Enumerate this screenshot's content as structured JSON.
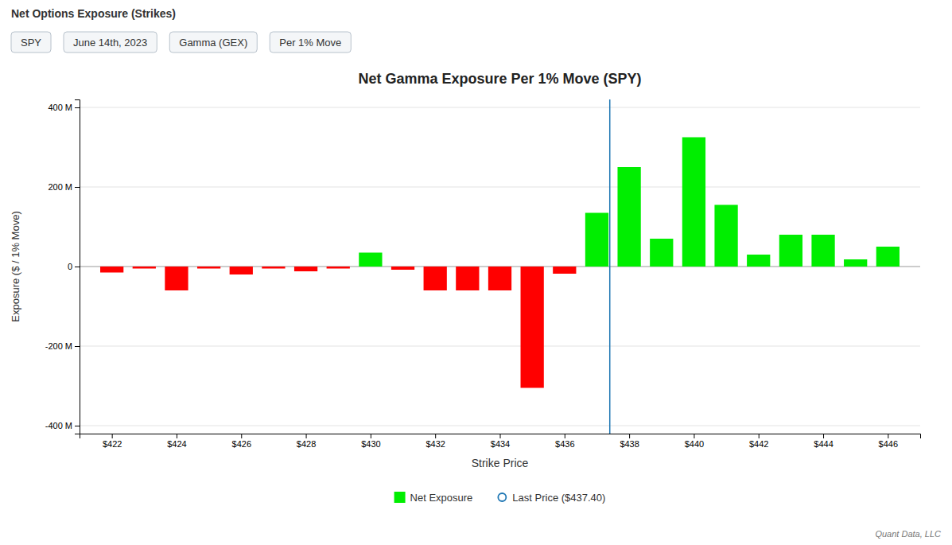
{
  "chart_data": {
    "type": "bar",
    "title": "Net Gamma Exposure Per 1% Move (SPY)",
    "x_label": "Strike Price",
    "y_label": "Exposure ($ / 1% Move)",
    "x": [
      422,
      423,
      424,
      425,
      426,
      427,
      428,
      429,
      430,
      431,
      432,
      433,
      434,
      435,
      436,
      437,
      438,
      439,
      440,
      441,
      442,
      443,
      444,
      445,
      446
    ],
    "series": [
      {
        "name": "Net Exposure",
        "color": "#00ee00",
        "values": [
          -15,
          -5,
          -60,
          -5,
          -20,
          -5,
          -12,
          -5,
          35,
          -8,
          -60,
          -60,
          -60,
          -305,
          -18,
          135,
          250,
          70,
          325,
          155,
          30,
          80,
          80,
          18,
          50
        ],
        "colors": [
          "#ff0000",
          "#ff0000",
          "#ff0000",
          "#ff0000",
          "#ff0000",
          "#ff0000",
          "#ff0000",
          "#ff0000",
          "#00ee00",
          "#ff0000",
          "#ff0000",
          "#ff0000",
          "#ff0000",
          "#ff0000",
          "#ff0000",
          "#00ee00",
          "#00ee00",
          "#00ee00",
          "#00ee00",
          "#00ee00",
          "#00ee00",
          "#00ee00",
          "#00ee00",
          "#00ee00",
          "#00ee00"
        ]
      },
      {
        "name": "Last Price ($437.40)",
        "type": "vline",
        "x": 437.4,
        "marker": "circle"
      }
    ],
    "xlim": [
      421.0,
      447.0
    ],
    "xticks": [
      {
        "value": 422,
        "label": "$422"
      },
      {
        "value": 424,
        "label": "$424"
      },
      {
        "value": 426,
        "label": "$426"
      },
      {
        "value": 428,
        "label": "$428"
      },
      {
        "value": 430,
        "label": "$430"
      },
      {
        "value": 432,
        "label": "$432"
      },
      {
        "value": 434,
        "label": "$434"
      },
      {
        "value": 436,
        "label": "$436"
      },
      {
        "value": 438,
        "label": "$438"
      },
      {
        "value": 440,
        "label": "$440"
      },
      {
        "value": 442,
        "label": "$442"
      },
      {
        "value": 444,
        "label": "$444"
      },
      {
        "value": 446,
        "label": "$446"
      }
    ],
    "ylim": [
      -420,
      420
    ],
    "yticks": [
      {
        "value": -400,
        "label": "-400 M"
      },
      {
        "value": -200,
        "label": "-200 M"
      },
      0,
      {
        "value": 200,
        "label": "200 M"
      },
      {
        "value": 400,
        "label": "400 M"
      }
    ],
    "grid": true,
    "legend": "bottom",
    "annotations": [
      "Net Options Exposure (Strikes)",
      "SPY",
      "June 14th, 2023",
      "Gamma (GEX)",
      "Per 1% Move",
      "Quant Data, LLC"
    ]
  }
}
